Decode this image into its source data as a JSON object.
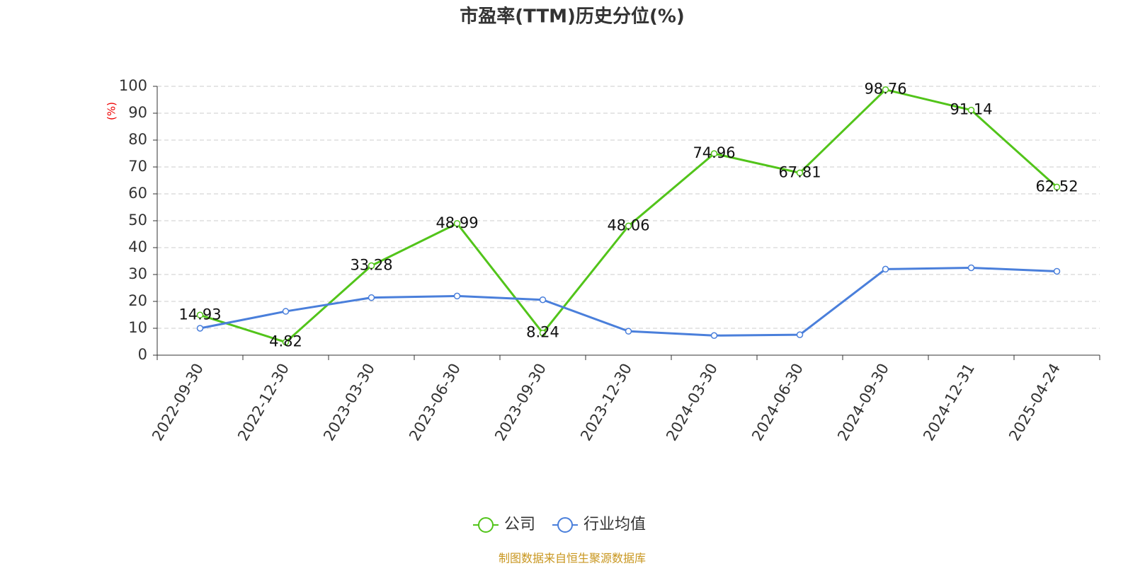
{
  "chart_data": {
    "type": "line",
    "title": "市盈率(TTM)历史分位(%)",
    "y_label": "(%)",
    "source": "制图数据来自恒生聚源数据库",
    "categories": [
      "2022-09-30",
      "2022-12-30",
      "2023-03-30",
      "2023-06-30",
      "2023-09-30",
      "2023-12-30",
      "2024-03-30",
      "2024-06-30",
      "2024-09-30",
      "2024-12-31",
      "2025-04-24"
    ],
    "series": [
      {
        "name": "公司",
        "color": "#52c41a",
        "show_labels": true,
        "values": [
          14.93,
          4.82,
          33.28,
          48.99,
          8.24,
          48.06,
          74.96,
          67.81,
          98.76,
          91.14,
          62.52
        ]
      },
      {
        "name": "行业均值",
        "color": "#4a7fdb",
        "show_labels": false,
        "values": [
          10.0,
          16.3,
          21.4,
          22.0,
          20.6,
          8.9,
          7.3,
          7.6,
          32.0,
          32.5,
          31.2
        ]
      }
    ],
    "ylim": [
      0,
      100
    ],
    "yticks": [
      0,
      10,
      20,
      30,
      40,
      50,
      60,
      70,
      80,
      90,
      100
    ],
    "grid": true,
    "legend": "bottom"
  }
}
